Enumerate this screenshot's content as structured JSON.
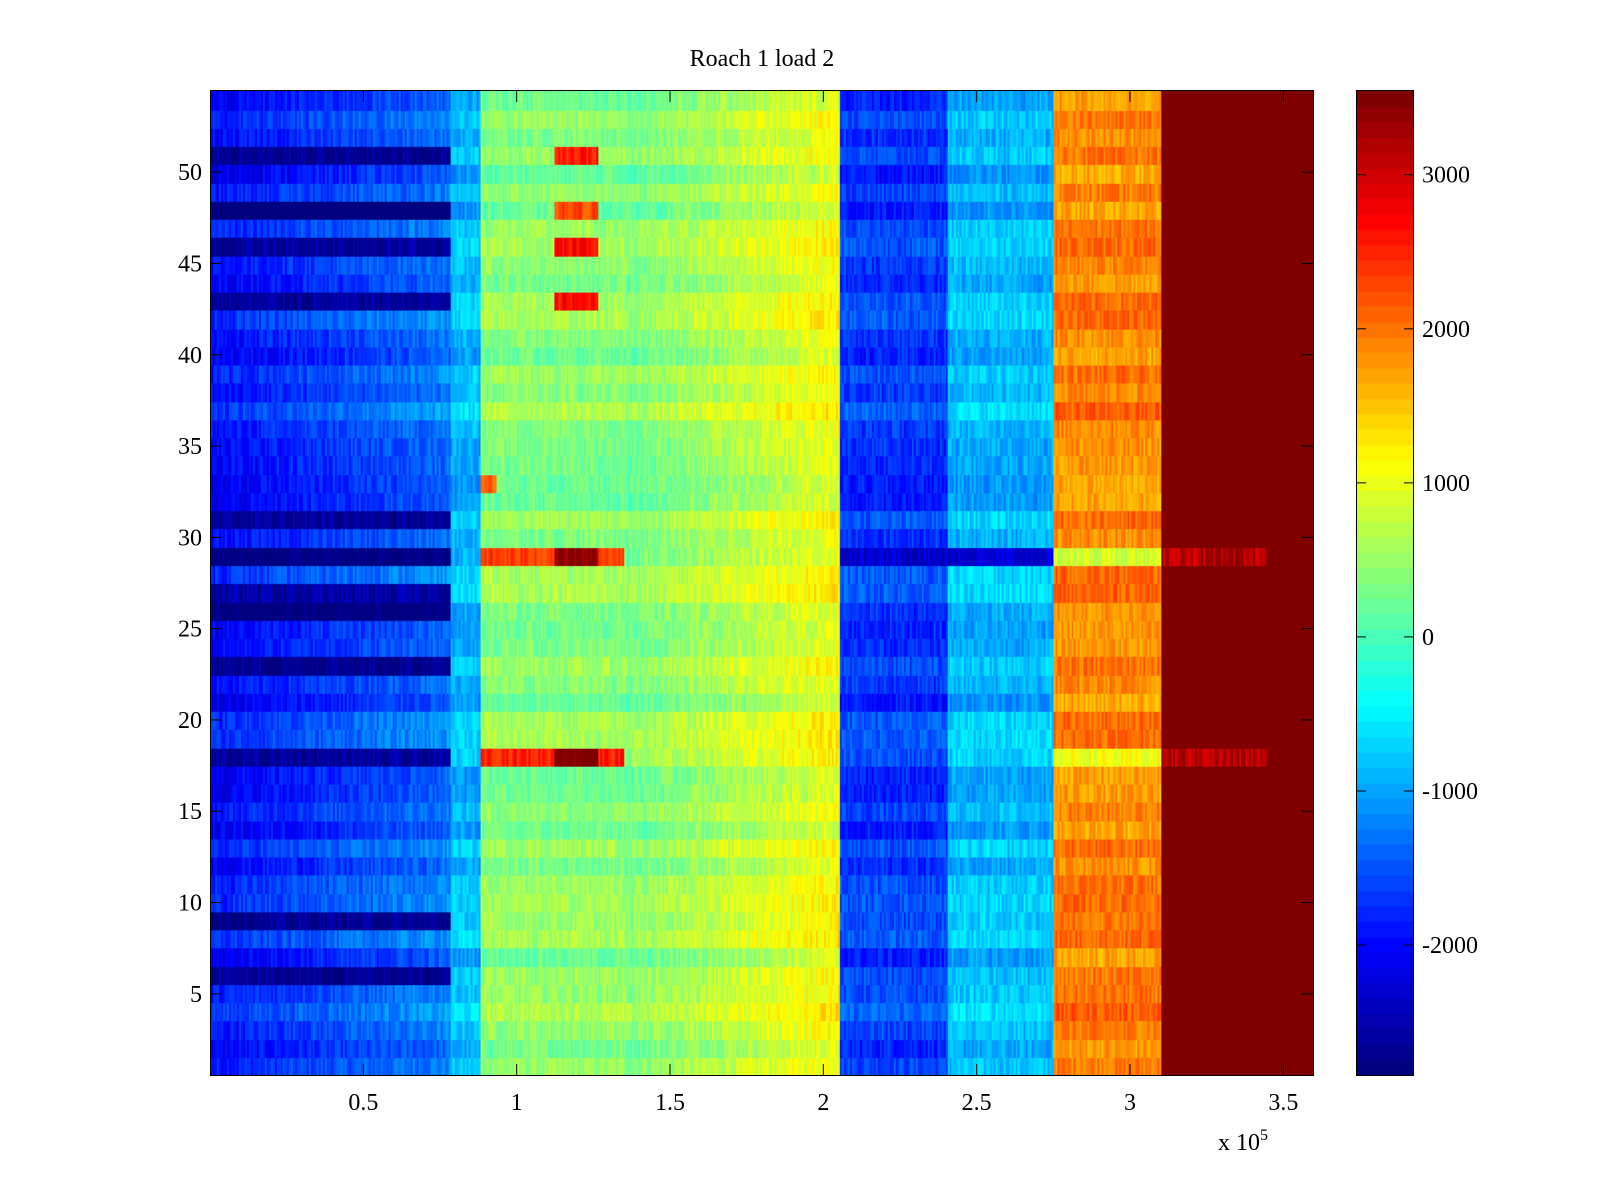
{
  "chart_data": {
    "type": "heatmap",
    "title": "Roach 1 load 2",
    "xlabel": "",
    "ylabel": "",
    "x_exponent_label": "x 10",
    "x_exponent": "5",
    "xlim": [
      0,
      3.6
    ],
    "ylim": [
      0.5,
      54.5
    ],
    "xticks": [
      0.5,
      1,
      1.5,
      2,
      2.5,
      3,
      3.5
    ],
    "xtick_labels": [
      "0.5",
      "1",
      "1.5",
      "2",
      "2.5",
      "3",
      "3.5"
    ],
    "yticks": [
      5,
      10,
      15,
      20,
      25,
      30,
      35,
      40,
      45,
      50
    ],
    "ytick_labels": [
      "5",
      "10",
      "15",
      "20",
      "25",
      "30",
      "35",
      "40",
      "45",
      "50"
    ],
    "rows": 54,
    "colormap": "jet",
    "clim": [
      -2850,
      3550
    ],
    "colorbar_ticks": [
      -2000,
      -1000,
      0,
      1000,
      2000,
      3000
    ],
    "colorbar_tick_labels": [
      "-2000",
      "-1000",
      "0",
      "1000",
      "2000",
      "3000"
    ],
    "column_bands": [
      {
        "x_start": 0.0,
        "x_end": 0.78,
        "base_value": -2000,
        "gradient_to": -1300
      },
      {
        "x_start": 0.78,
        "x_end": 0.88,
        "base_value": -900
      },
      {
        "x_start": 0.88,
        "x_end": 1.35,
        "base_value": 400
      },
      {
        "x_start": 1.35,
        "x_end": 2.05,
        "base_value": 300,
        "gradient_to": 1100
      },
      {
        "x_start": 2.05,
        "x_end": 2.4,
        "base_value": -1700
      },
      {
        "x_start": 2.4,
        "x_end": 2.75,
        "base_value": -900
      },
      {
        "x_start": 2.75,
        "x_end": 3.1,
        "base_value": 1900
      },
      {
        "x_start": 3.1,
        "x_end": 3.6,
        "base_value": 3550
      }
    ],
    "highlight_rows": [
      {
        "row": 29,
        "note": "high values 0.88-1.35, low 2.05-2.75, peaks to 3600 at 1.15-1.25"
      },
      {
        "row": 18,
        "note": "high values 0.88-1.35, peaks to 3400 at 1.15-1.25"
      },
      {
        "row": 51,
        "note": "hotspot 1.12-1.25"
      },
      {
        "row": 48,
        "note": "hotspot 1.12-1.25"
      },
      {
        "row": 46,
        "note": "hotspot 1.12-1.25"
      },
      {
        "row": 43,
        "note": "hotspot 1.12-1.25"
      },
      {
        "row": 33,
        "note": "hotspot 0.88-0.92"
      }
    ],
    "dark_rows_left_band": [
      51,
      48,
      46,
      43,
      31,
      29,
      27,
      26,
      23,
      18,
      9,
      6
    ]
  }
}
